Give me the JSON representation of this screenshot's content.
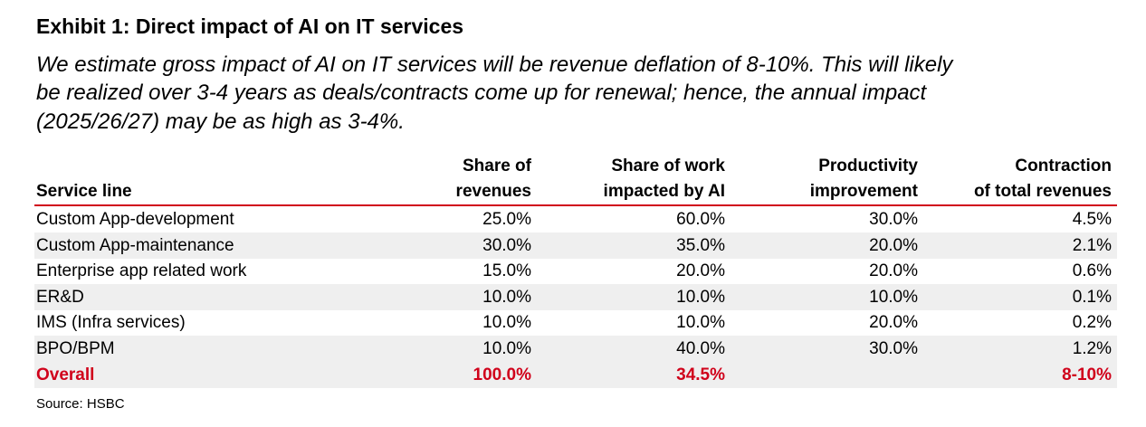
{
  "header": {
    "title": "Exhibit 1: Direct impact of AI on IT services",
    "subtitle": [
      "We estimate gross impact of AI on IT services will be revenue deflation of 8-10%. This will likely",
      "be realized over 3-4 years as deals/contracts come up for renewal; hence, the annual impact",
      "(2025/26/27) may be as high as 3-4%."
    ]
  },
  "table": {
    "columns": [
      [
        "Service line"
      ],
      [
        "Share of",
        "revenues"
      ],
      [
        "Share of work",
        "impacted by AI"
      ],
      [
        "Productivity",
        "improvement"
      ],
      [
        "Contraction",
        "of total revenues"
      ]
    ],
    "rows": [
      [
        "Custom App-development",
        "25.0%",
        "60.0%",
        "30.0%",
        "4.5%"
      ],
      [
        "Custom App-maintenance",
        "30.0%",
        "35.0%",
        "20.0%",
        "2.1%"
      ],
      [
        "Enterprise app related work",
        "15.0%",
        "20.0%",
        "20.0%",
        "0.6%"
      ],
      [
        "ER&D",
        "10.0%",
        "10.0%",
        "10.0%",
        "0.1%"
      ],
      [
        "IMS (Infra services)",
        "10.0%",
        "10.0%",
        "20.0%",
        "0.2%"
      ],
      [
        "BPO/BPM",
        "10.0%",
        "40.0%",
        "30.0%",
        "1.2%"
      ]
    ],
    "total": [
      "Overall",
      "100.0%",
      "34.5%",
      null,
      "8-10%"
    ]
  },
  "footer": {
    "source": "Source: HSBC"
  }
}
